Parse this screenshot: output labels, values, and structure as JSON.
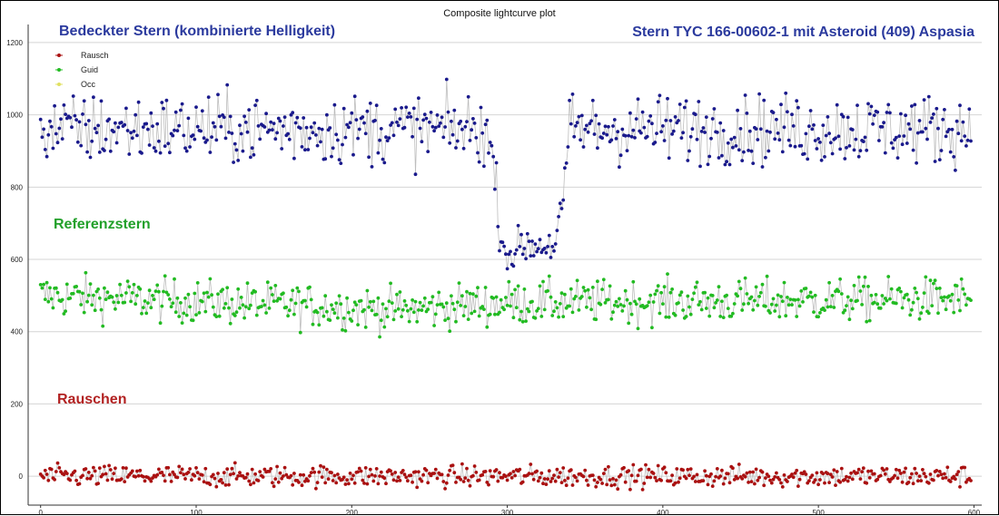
{
  "chart_data": {
    "type": "scatter",
    "title": "Composite lightcurve plot",
    "xlabel": "",
    "ylabel": "",
    "xlim": [
      -8,
      605
    ],
    "ylim": [
      -80,
      1250
    ],
    "x_ticks": [
      0,
      100,
      200,
      300,
      400,
      500,
      600
    ],
    "y_ticks": [
      0,
      200,
      400,
      600,
      800,
      1000,
      1200
    ],
    "grid": "horizontal",
    "legend_position": "top-left",
    "legend": [
      {
        "name": "Rausch",
        "color": "#aa1111"
      },
      {
        "name": "Guid",
        "color": "#22bb22"
      },
      {
        "name": "Occ",
        "color": "#e0e060"
      }
    ],
    "annotations": {
      "occ_label": "Bedeckter Stern (kombinierte Helligkeit)",
      "star_label": "Stern TYC 166-00602-1 mit Asteroid (409) Aspasia",
      "ref_label": "Referenzstern",
      "noise_label": "Rauschen"
    },
    "colors": {
      "occ": "#1a1a8c",
      "ref": "#22bb22",
      "noise": "#aa1111",
      "connector": "#bdbdbd",
      "occ_text": "#2b3a9e",
      "ref_text": "#22a02a",
      "noise_text": "#b22222"
    },
    "x_range": [
      0,
      598
    ],
    "series": [
      {
        "name": "Occ",
        "profile": [
          [
            0,
            960
          ],
          [
            286,
            960
          ],
          [
            292,
            840
          ],
          [
            296,
            650
          ],
          [
            302,
            610
          ],
          [
            310,
            640
          ],
          [
            330,
            640
          ],
          [
            336,
            760
          ],
          [
            340,
            960
          ],
          [
            598,
            960
          ]
        ],
        "spread": [
          [
            0,
            80
          ],
          [
            286,
            80
          ],
          [
            292,
            60
          ],
          [
            296,
            45
          ],
          [
            336,
            45
          ],
          [
            340,
            80
          ],
          [
            598,
            80
          ]
        ]
      },
      {
        "name": "Guid",
        "profile": [
          [
            0,
            500
          ],
          [
            180,
            470
          ],
          [
            230,
            460
          ],
          [
            300,
            480
          ],
          [
            598,
            490
          ]
        ],
        "spread": [
          [
            0,
            50
          ],
          [
            598,
            50
          ]
        ]
      },
      {
        "name": "Rausch",
        "profile": [
          [
            0,
            0
          ],
          [
            598,
            0
          ]
        ],
        "spread": [
          [
            0,
            25
          ],
          [
            598,
            25
          ]
        ]
      }
    ]
  }
}
